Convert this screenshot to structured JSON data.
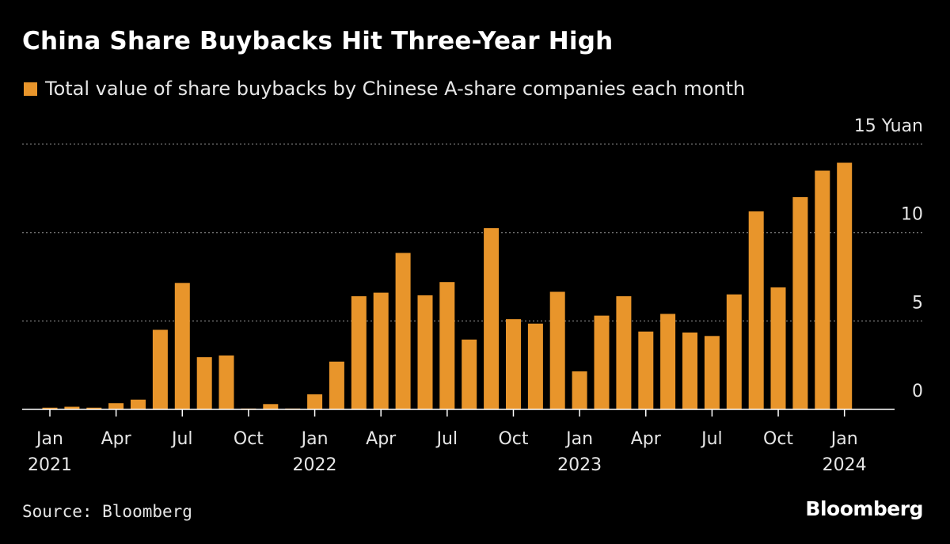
{
  "header": {
    "title": "China Share Buybacks Hit Three-Year High",
    "legend_label": "Total value of share buybacks by Chinese A-share companies each month"
  },
  "footer": {
    "source": "Source: Bloomberg",
    "brand": "Bloomberg"
  },
  "colors": {
    "background": "#000000",
    "bar": "#e8952b",
    "grid": "#6e6e6e",
    "axis": "#ffffff",
    "text": "#e6e6e6"
  },
  "chart_data": {
    "type": "bar",
    "title": "China Share Buybacks Hit Three-Year High",
    "ylabel": "Yuan",
    "ylim": [
      0,
      15
    ],
    "yticks": [
      0,
      5,
      10,
      15
    ],
    "ytick_labels": [
      "0",
      "5",
      "10",
      "15 Yuan"
    ],
    "grid": true,
    "categories": [
      "2021-01",
      "2021-02",
      "2021-03",
      "2021-04",
      "2021-05",
      "2021-06",
      "2021-07",
      "2021-08",
      "2021-09",
      "2021-10",
      "2021-11",
      "2021-12",
      "2022-01",
      "2022-02",
      "2022-03",
      "2022-04",
      "2022-05",
      "2022-06",
      "2022-07",
      "2022-08",
      "2022-09",
      "2022-10",
      "2022-11",
      "2022-12",
      "2023-01",
      "2023-02",
      "2023-03",
      "2023-04",
      "2023-05",
      "2023-06",
      "2023-07",
      "2023-08",
      "2023-09",
      "2023-10",
      "2023-11",
      "2023-12",
      "2024-01"
    ],
    "series": [
      {
        "name": "Total value of share buybacks by Chinese A-share companies each month",
        "values": [
          0.1,
          0.15,
          0.1,
          0.35,
          0.55,
          4.5,
          7.15,
          2.95,
          3.05,
          0.05,
          0.3,
          0.05,
          0.85,
          2.7,
          6.4,
          6.6,
          8.85,
          6.45,
          7.2,
          3.95,
          10.25,
          5.1,
          4.85,
          6.65,
          2.15,
          5.3,
          6.4,
          4.4,
          5.4,
          4.35,
          4.15,
          6.5,
          11.2,
          6.9,
          12.0,
          13.5,
          13.95
        ]
      }
    ],
    "x_tick_labels": [
      {
        "index": 0,
        "month": "Jan",
        "year": "2021"
      },
      {
        "index": 3,
        "month": "Apr",
        "year": ""
      },
      {
        "index": 6,
        "month": "Jul",
        "year": ""
      },
      {
        "index": 9,
        "month": "Oct",
        "year": ""
      },
      {
        "index": 12,
        "month": "Jan",
        "year": "2022"
      },
      {
        "index": 15,
        "month": "Apr",
        "year": ""
      },
      {
        "index": 18,
        "month": "Jul",
        "year": ""
      },
      {
        "index": 21,
        "month": "Oct",
        "year": ""
      },
      {
        "index": 24,
        "month": "Jan",
        "year": "2023"
      },
      {
        "index": 27,
        "month": "Apr",
        "year": ""
      },
      {
        "index": 30,
        "month": "Jul",
        "year": ""
      },
      {
        "index": 33,
        "month": "Oct",
        "year": ""
      },
      {
        "index": 36,
        "month": "Jan",
        "year": "2024"
      }
    ]
  }
}
